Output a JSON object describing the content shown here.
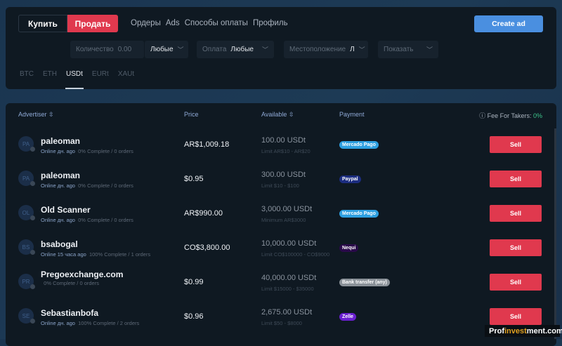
{
  "header": {
    "buy": "Купить",
    "sell": "Продать",
    "nav": [
      "Ордеры",
      "Ads",
      "Способы оплаты",
      "Профиль"
    ],
    "create_ad": "Create ad"
  },
  "filters": {
    "amount_label": "Количество",
    "amount_placeholder": "0.00",
    "amount_currency": "Любые",
    "payment_label": "Оплата",
    "payment_value": "Любые",
    "location_label": "Местоположение",
    "location_value": "Л",
    "show_label": "Показать"
  },
  "assets": [
    "BTC",
    "ETH",
    "USDt",
    "EURt",
    "XAUt"
  ],
  "active_asset": "USDt",
  "table": {
    "headers": {
      "advertiser": "Advertiser",
      "price": "Price",
      "available": "Available",
      "payment": "Payment"
    },
    "fee_label": "Fee For Takers:",
    "fee_value": "0%",
    "rows": [
      {
        "initials": "PA",
        "name": "paleoman",
        "online": "Online дн. ago",
        "stats": "0% Complete / 0 orders",
        "price": "AR$1,009.18",
        "available": "100.00 USDt",
        "limit": "Limit AR$10 - AR$20",
        "payment": "Mercado Pago",
        "payment_color": "#2d9fe0",
        "action": "Sell"
      },
      {
        "initials": "PA",
        "name": "paleoman",
        "online": "Online дн. ago",
        "stats": "0% Complete / 0 orders",
        "price": "$0.95",
        "available": "300.00 USDt",
        "limit": "Limit $10 - $100",
        "payment": "Paypal",
        "payment_color": "#1c2d80",
        "action": "Sell"
      },
      {
        "initials": "OL",
        "name": "Old Scanner",
        "online": "Online дн. ago",
        "stats": "0% Complete / 0 orders",
        "price": "AR$990.00",
        "available": "3,000.00 USDt",
        "limit": "Minimum AR$3000",
        "payment": "Mercado Pago",
        "payment_color": "#2d9fe0",
        "action": "Sell"
      },
      {
        "initials": "BS",
        "name": "bsabogal",
        "online": "Online 15 часа ago",
        "stats": "100% Complete / 1 orders",
        "price": "CO$3,800.00",
        "available": "10,000.00 USDt",
        "limit": "Limit CO$100000 - CO$9000",
        "payment": "Nequi",
        "payment_color": "#2a0a4a",
        "action": "Sell"
      },
      {
        "initials": "PR",
        "name": "Pregoexchange.com",
        "online": "",
        "stats": "0% Complete / 0 orders",
        "price": "$0.99",
        "available": "40,000.00 USDt",
        "limit": "Limit $15000 - $35000",
        "payment": "Bank transfer (any)",
        "payment_color": "#8a9198",
        "action": "Sell"
      },
      {
        "initials": "SE",
        "name": "Sebastianbofa",
        "online": "Online дн. ago",
        "stats": "100% Complete / 2 orders",
        "price": "$0.96",
        "available": "2,675.00 USDt",
        "limit": "Limit $50 - $8000",
        "payment": "Zelle",
        "payment_color": "#6a1fd0",
        "action": "Sell"
      }
    ]
  },
  "watermark": {
    "pre": "Prof",
    "mid": "invest",
    "post": "ment.com"
  }
}
